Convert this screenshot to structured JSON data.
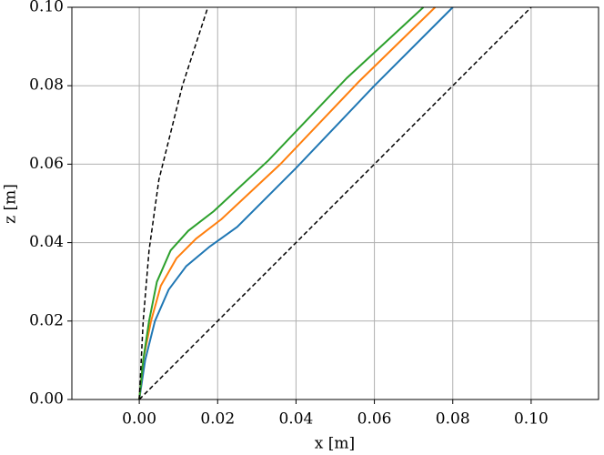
{
  "chart_data": {
    "type": "line",
    "xlabel": "x [m]",
    "ylabel": "z [m]",
    "xlim": [
      -0.0172,
      0.1172
    ],
    "ylim": [
      0,
      0.1
    ],
    "xticks": [
      {
        "value": 0,
        "label": "0.00"
      },
      {
        "value": 0.02,
        "label": "0.02"
      },
      {
        "value": 0.04,
        "label": "0.04"
      },
      {
        "value": 0.06,
        "label": "0.06"
      },
      {
        "value": 0.08,
        "label": "0.08"
      },
      {
        "value": 0.1,
        "label": "0.10"
      }
    ],
    "yticks": [
      {
        "value": 0,
        "label": "0.00"
      },
      {
        "value": 0.02,
        "label": "0.02"
      },
      {
        "value": 0.04,
        "label": "0.04"
      },
      {
        "value": 0.06,
        "label": "0.06"
      },
      {
        "value": 0.08,
        "label": "0.08"
      },
      {
        "value": 0.1,
        "label": "0.10"
      }
    ],
    "grid": true,
    "series": [
      {
        "color": "#1f77b4",
        "line_style": "solid",
        "x": [
          0,
          0.0015,
          0.004,
          0.0075,
          0.012,
          0.018,
          0.025,
          0.04,
          0.06,
          0.08
        ],
        "values": [
          0,
          0.01,
          0.02,
          0.028,
          0.034,
          0.039,
          0.044,
          0.059,
          0.08,
          0.1
        ]
      },
      {
        "color": "#ff7f0e",
        "line_style": "solid",
        "x": [
          0,
          0.001,
          0.003,
          0.0055,
          0.0095,
          0.0145,
          0.021,
          0.036,
          0.056,
          0.0755
        ],
        "values": [
          0,
          0.01,
          0.02,
          0.029,
          0.036,
          0.041,
          0.046,
          0.06,
          0.081,
          0.1
        ]
      },
      {
        "color": "#2ca02c",
        "line_style": "solid",
        "x": [
          0,
          0.001,
          0.0025,
          0.0045,
          0.008,
          0.0125,
          0.019,
          0.033,
          0.053,
          0.0725
        ],
        "values": [
          0,
          0.01,
          0.02,
          0.03,
          0.038,
          0.043,
          0.048,
          0.061,
          0.082,
          0.1
        ]
      },
      {
        "color": "#000000",
        "line_style": "dashed",
        "x": [
          0,
          0.001,
          0.0025,
          0.005,
          0.0085,
          0.011,
          0.0175
        ],
        "values": [
          0,
          0.02,
          0.038,
          0.056,
          0.07,
          0.08,
          0.1
        ]
      },
      {
        "color": "#000000",
        "line_style": "dashed",
        "x": [
          0,
          0.1
        ],
        "values": [
          0,
          0.1
        ]
      }
    ]
  }
}
